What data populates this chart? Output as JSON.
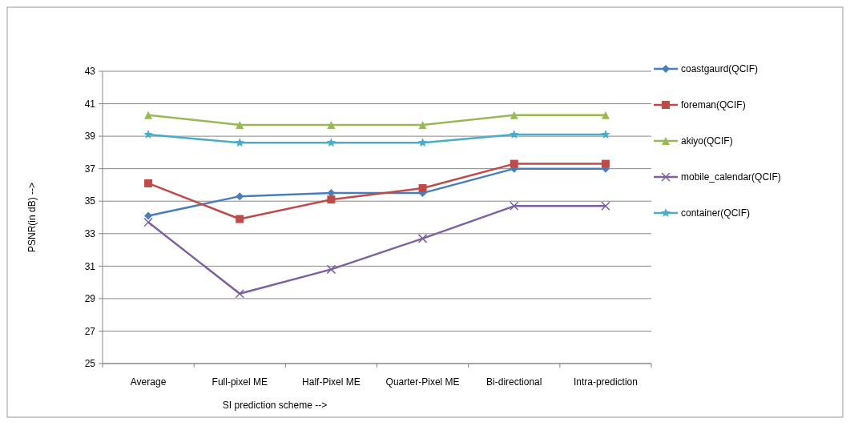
{
  "chart_data": {
    "type": "line",
    "xlabel": "SI prediction scheme -->",
    "ylabel": "PSNR(in dB) -->",
    "categories": [
      "Average",
      "Full-pixel ME",
      "Half-Pixel ME",
      "Quarter-Pixel ME",
      "Bi-directional",
      "Intra-prediction"
    ],
    "ylim": [
      25,
      43
    ],
    "yticks": [
      25,
      27,
      29,
      31,
      33,
      35,
      37,
      39,
      41,
      43
    ],
    "grid": "y",
    "legend": "right",
    "series": [
      {
        "name": "coastgaurd(QCIF)",
        "color": "#4a7ebb",
        "marker": "diamond",
        "values": [
          34.1,
          35.3,
          35.5,
          35.5,
          37.0,
          37.0
        ]
      },
      {
        "name": "foreman(QCIF)",
        "color": "#be4b48",
        "marker": "square",
        "values": [
          36.1,
          33.9,
          35.1,
          35.8,
          37.3,
          37.3
        ]
      },
      {
        "name": "akiyo(QCIF)",
        "color": "#98b954",
        "marker": "triangle",
        "values": [
          40.3,
          39.7,
          39.7,
          39.7,
          40.3,
          40.3
        ]
      },
      {
        "name": "mobile_calendar(QCIF)",
        "color": "#7d60a0",
        "marker": "cross",
        "values": [
          33.7,
          29.3,
          30.8,
          32.7,
          34.7,
          34.7
        ]
      },
      {
        "name": "container(QCIF)",
        "color": "#4bacc6",
        "marker": "star",
        "values": [
          39.1,
          38.6,
          38.6,
          38.6,
          39.1,
          39.1
        ]
      }
    ]
  }
}
